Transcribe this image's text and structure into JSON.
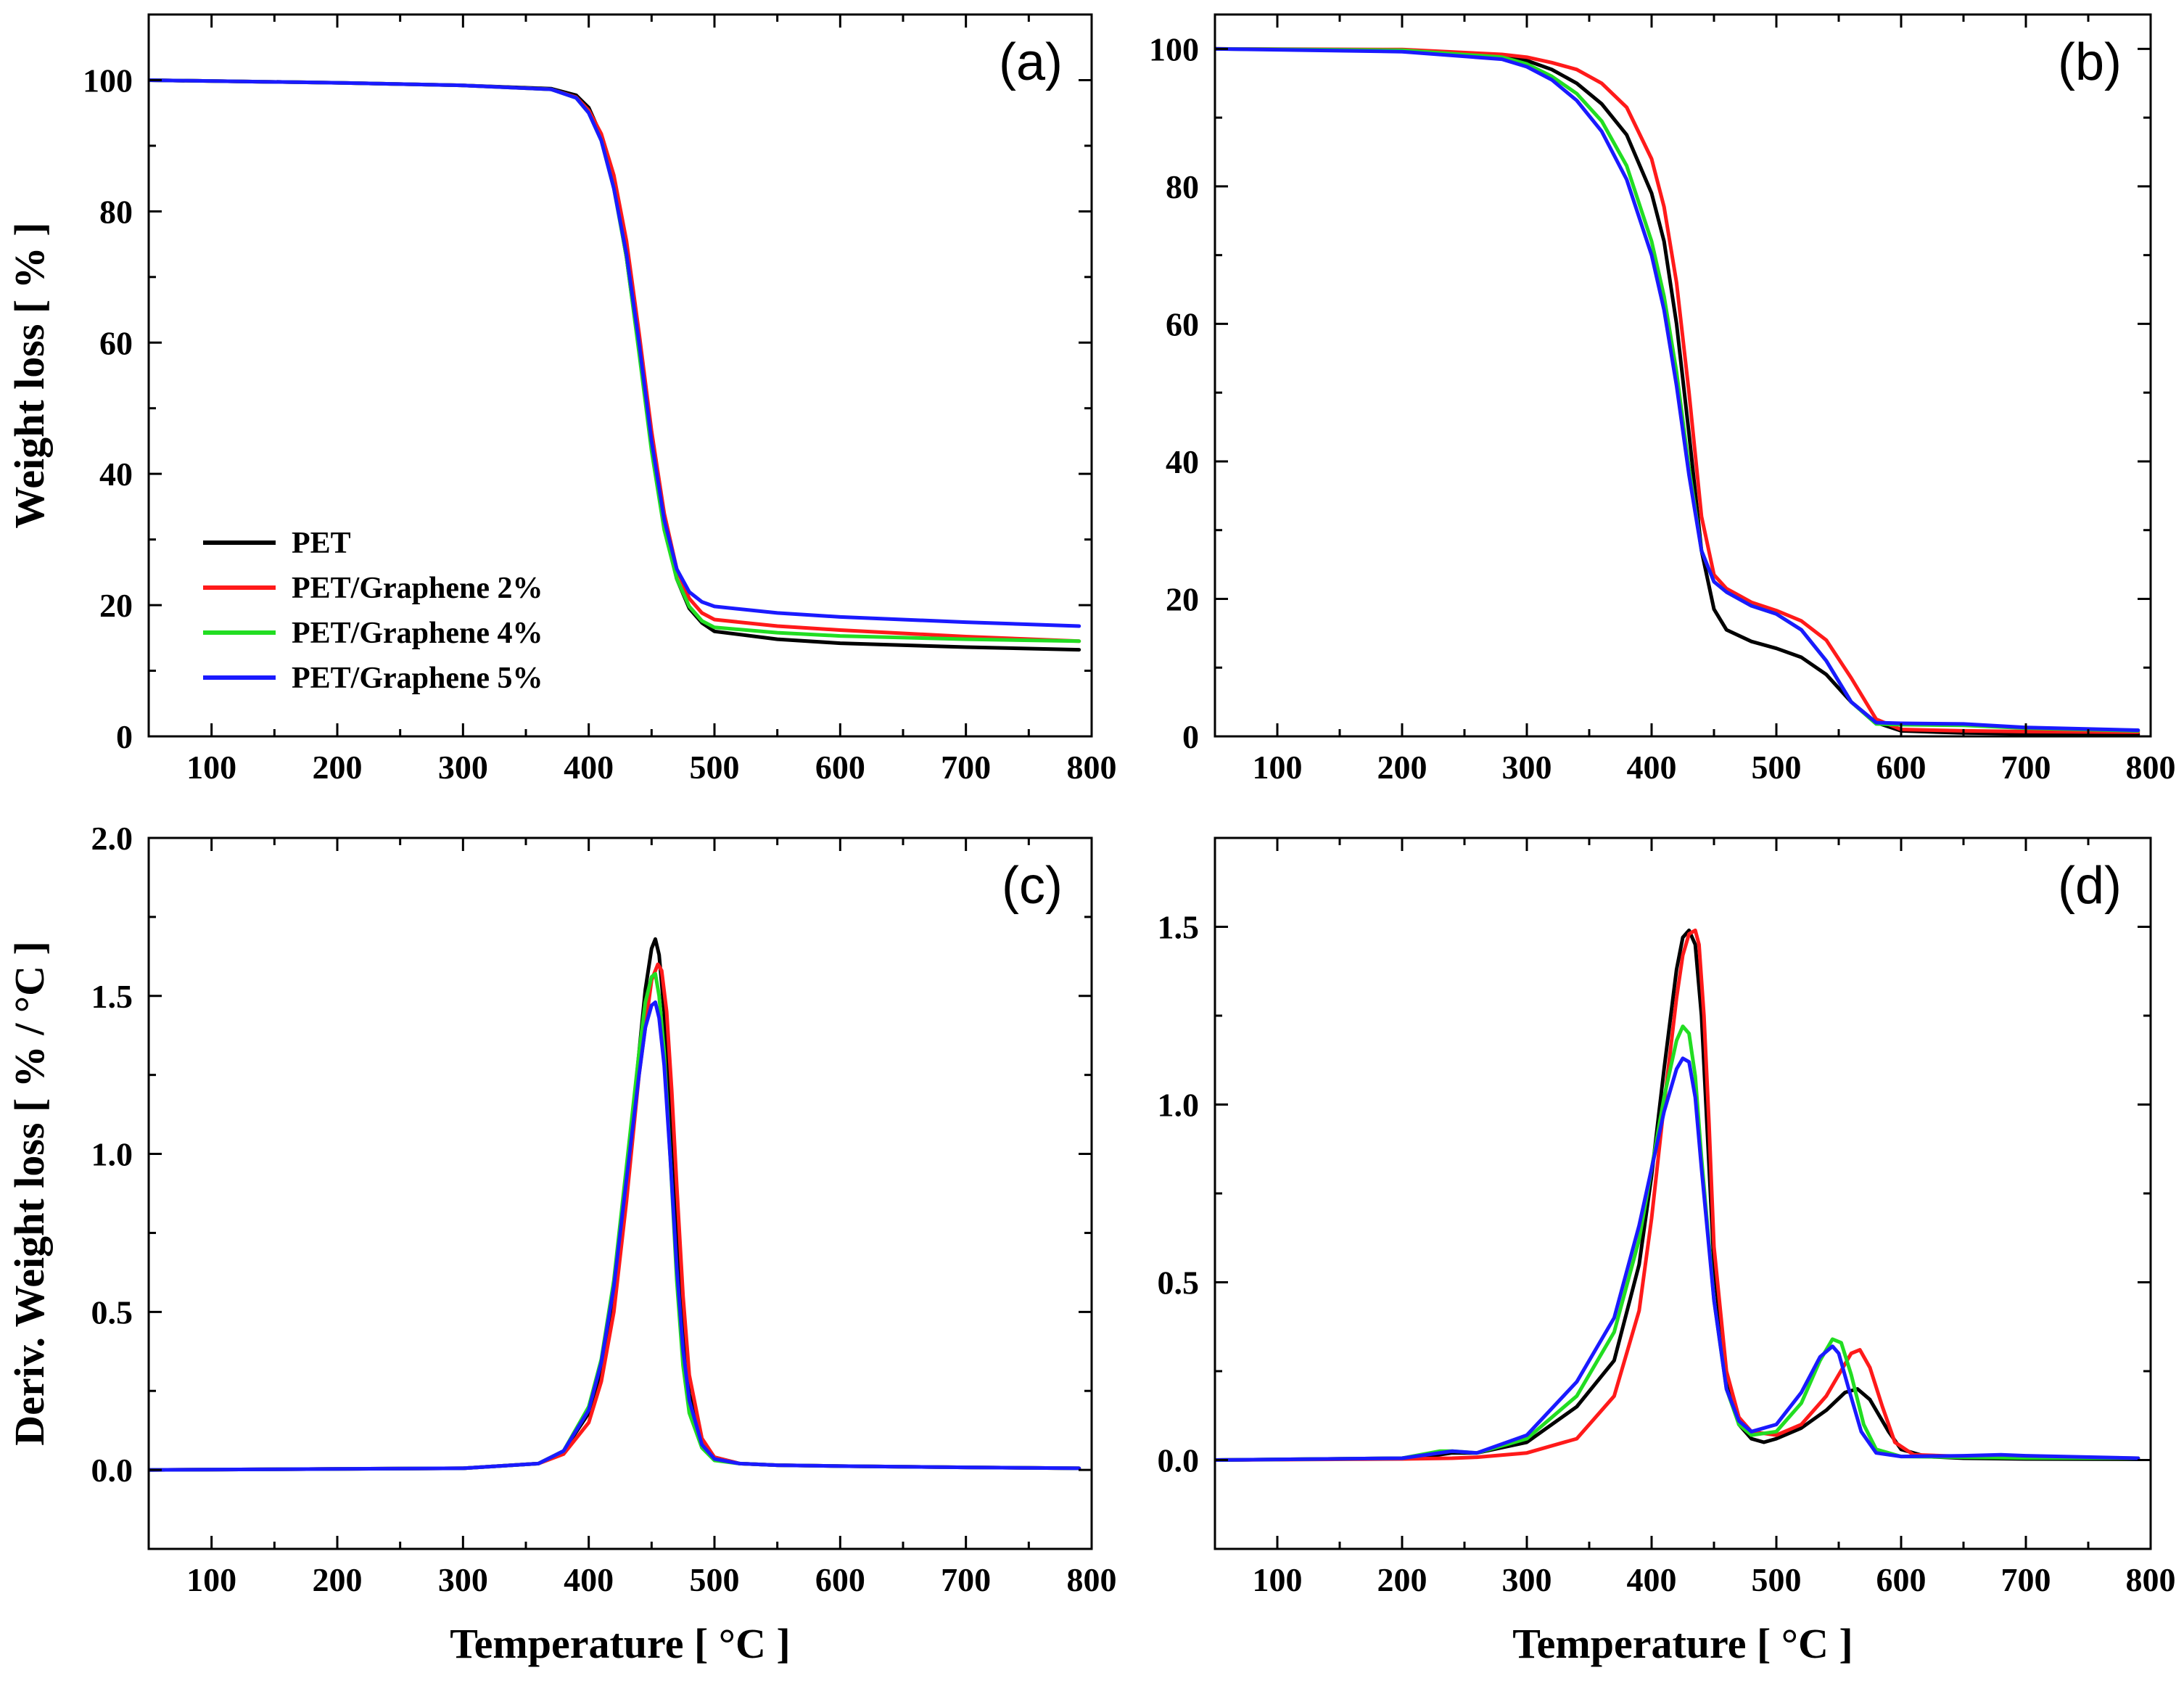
{
  "colors": {
    "PET": "#000000",
    "PET/Graphene 2%": "#ff1a1a",
    "PET/Graphene 4%": "#22dd22",
    "PET/Graphene 5%": "#1a1aff"
  },
  "legend": {
    "entries": [
      "PET",
      "PET/Graphene 2%",
      "PET/Graphene 4%",
      "PET/Graphene 5%"
    ]
  },
  "chart_data": [
    {
      "id": "a",
      "label": "(a)",
      "type": "line",
      "xlabel": "",
      "ylabel": "Weight loss [ % ]",
      "xlim": [
        50,
        800
      ],
      "ylim": [
        0,
        110
      ],
      "xticks": [
        100,
        200,
        300,
        400,
        500,
        600,
        700,
        800
      ],
      "yticks": [
        0,
        20,
        40,
        60,
        80,
        100
      ],
      "ytick_labels": [
        "0",
        "20",
        "40",
        "60",
        "80",
        "100"
      ],
      "series": [
        {
          "name": "PET",
          "x": [
            50,
            200,
            300,
            370,
            390,
            400,
            410,
            420,
            430,
            440,
            450,
            460,
            470,
            480,
            490,
            500,
            550,
            600,
            700,
            790
          ],
          "y": [
            100,
            99.6,
            99.2,
            98.7,
            97.7,
            95.8,
            91.5,
            84,
            73,
            59,
            44,
            32,
            24,
            19.5,
            17.3,
            16,
            14.8,
            14.2,
            13.6,
            13.2
          ]
        },
        {
          "name": "PET/Graphene 2%",
          "x": [
            50,
            200,
            300,
            370,
            390,
            400,
            410,
            420,
            430,
            440,
            450,
            460,
            470,
            480,
            490,
            500,
            550,
            600,
            700,
            790
          ],
          "y": [
            100,
            99.6,
            99.2,
            98.6,
            97.4,
            95.4,
            91.8,
            85.5,
            75.5,
            61.5,
            46.5,
            34,
            25.5,
            21,
            18.8,
            17.8,
            16.8,
            16.2,
            15.2,
            14.5
          ]
        },
        {
          "name": "PET/Graphene 4%",
          "x": [
            50,
            200,
            300,
            370,
            390,
            400,
            410,
            420,
            430,
            440,
            450,
            460,
            470,
            480,
            490,
            500,
            550,
            600,
            700,
            790
          ],
          "y": [
            100,
            99.6,
            99.2,
            98.6,
            97.3,
            95,
            90.8,
            83.5,
            73,
            58.5,
            43.5,
            31.5,
            24,
            19.8,
            17.6,
            16.6,
            15.8,
            15.3,
            14.8,
            14.5
          ]
        },
        {
          "name": "PET/Graphene 5%",
          "x": [
            50,
            200,
            300,
            370,
            390,
            400,
            410,
            420,
            430,
            440,
            450,
            460,
            470,
            480,
            490,
            500,
            550,
            600,
            700,
            790
          ],
          "y": [
            100,
            99.6,
            99.2,
            98.6,
            97.3,
            95,
            90.8,
            83.5,
            73.5,
            60,
            45,
            33,
            25.5,
            22,
            20.5,
            19.8,
            18.8,
            18.2,
            17.4,
            16.8
          ]
        }
      ]
    },
    {
      "id": "b",
      "label": "(b)",
      "type": "line",
      "xlabel": "",
      "ylabel": "",
      "xlim": [
        50,
        800
      ],
      "ylim": [
        0,
        105
      ],
      "xticks": [
        100,
        200,
        300,
        400,
        500,
        600,
        700,
        800
      ],
      "yticks": [
        0,
        20,
        40,
        60,
        80,
        100
      ],
      "ytick_labels": [
        "0",
        "20",
        "40",
        "60",
        "80",
        "100"
      ],
      "series": [
        {
          "name": "PET",
          "x": [
            50,
            200,
            280,
            300,
            320,
            340,
            360,
            380,
            400,
            410,
            420,
            430,
            440,
            450,
            460,
            480,
            500,
            520,
            540,
            560,
            580,
            600,
            650,
            700,
            790
          ],
          "y": [
            100,
            99.8,
            99,
            98.3,
            97,
            95,
            92,
            87.5,
            79,
            72,
            60,
            44,
            27,
            18.5,
            15.5,
            13.8,
            12.8,
            11.5,
            9,
            5,
            2,
            0.8,
            0.5,
            0.4,
            0.3
          ]
        },
        {
          "name": "PET/Graphene 2%",
          "x": [
            50,
            200,
            280,
            300,
            320,
            340,
            360,
            380,
            400,
            410,
            420,
            430,
            440,
            450,
            460,
            470,
            480,
            500,
            520,
            540,
            560,
            580,
            600,
            650,
            700,
            790
          ],
          "y": [
            100,
            99.9,
            99.2,
            98.8,
            98,
            97,
            95,
            91.5,
            84,
            77,
            66,
            50,
            32,
            23.5,
            21.5,
            20.5,
            19.5,
            18.3,
            16.8,
            14,
            8.5,
            2.5,
            1,
            0.8,
            0.7,
            0.6
          ]
        },
        {
          "name": "PET/Graphene 4%",
          "x": [
            50,
            200,
            280,
            300,
            320,
            340,
            360,
            380,
            400,
            410,
            420,
            430,
            440,
            450,
            460,
            480,
            500,
            520,
            540,
            560,
            580,
            600,
            650,
            700,
            790
          ],
          "y": [
            100,
            99.8,
            98.8,
            97.8,
            96,
            93.5,
            89.5,
            83,
            72,
            64,
            53,
            39,
            27,
            22.5,
            21,
            19,
            17.8,
            15.5,
            11,
            5,
            1.8,
            1.7,
            1.6,
            1.2,
            0.8
          ]
        },
        {
          "name": "PET/Graphene 5%",
          "x": [
            50,
            200,
            280,
            300,
            320,
            340,
            360,
            380,
            400,
            410,
            420,
            430,
            440,
            450,
            460,
            480,
            500,
            520,
            540,
            560,
            580,
            600,
            650,
            700,
            790
          ],
          "y": [
            100,
            99.6,
            98.5,
            97.4,
            95.5,
            92.5,
            88,
            81,
            70,
            62,
            51,
            38,
            27,
            22.5,
            21,
            19,
            17.8,
            15.5,
            11,
            5,
            2,
            1.9,
            1.8,
            1.3,
            0.9
          ]
        }
      ]
    },
    {
      "id": "c",
      "label": "(c)",
      "type": "line",
      "xlabel": "Temperature [ °C ]",
      "ylabel": "Deriv. Weight loss [ % / °C ]",
      "xlim": [
        50,
        800
      ],
      "ylim": [
        -0.25,
        2.0
      ],
      "xticks": [
        100,
        200,
        300,
        400,
        500,
        600,
        700,
        800
      ],
      "yticks": [
        0,
        0.5,
        1.0,
        1.5,
        2.0
      ],
      "ytick_labels": [
        "0.0",
        "0.5",
        "1.0",
        "1.5",
        "2.0"
      ],
      "series": [
        {
          "name": "PET",
          "x": [
            50,
            300,
            360,
            380,
            400,
            410,
            420,
            430,
            440,
            445,
            450,
            453,
            456,
            460,
            465,
            470,
            475,
            480,
            490,
            500,
            520,
            550,
            600,
            650,
            700,
            790
          ],
          "y": [
            0,
            0.005,
            0.02,
            0.06,
            0.18,
            0.32,
            0.56,
            0.92,
            1.32,
            1.52,
            1.65,
            1.68,
            1.63,
            1.45,
            1.1,
            0.72,
            0.42,
            0.24,
            0.09,
            0.04,
            0.02,
            0.015,
            0.012,
            0.01,
            0.008,
            0.005
          ]
        },
        {
          "name": "PET/Graphene 2%",
          "x": [
            50,
            300,
            360,
            380,
            400,
            410,
            420,
            430,
            440,
            450,
            455,
            458,
            462,
            466,
            470,
            475,
            480,
            490,
            500,
            520,
            550,
            600,
            650,
            700,
            790
          ],
          "y": [
            0,
            0.005,
            0.02,
            0.05,
            0.15,
            0.28,
            0.5,
            0.85,
            1.25,
            1.55,
            1.6,
            1.58,
            1.45,
            1.2,
            0.9,
            0.55,
            0.3,
            0.1,
            0.04,
            0.02,
            0.015,
            0.012,
            0.01,
            0.008,
            0.005
          ]
        },
        {
          "name": "PET/Graphene 4%",
          "x": [
            50,
            300,
            360,
            380,
            400,
            410,
            420,
            430,
            440,
            445,
            450,
            453,
            456,
            460,
            465,
            470,
            475,
            480,
            490,
            500,
            520,
            550,
            600,
            650,
            700,
            790
          ],
          "y": [
            0,
            0.005,
            0.02,
            0.06,
            0.2,
            0.35,
            0.6,
            0.96,
            1.32,
            1.48,
            1.56,
            1.57,
            1.5,
            1.32,
            0.98,
            0.6,
            0.33,
            0.18,
            0.07,
            0.03,
            0.02,
            0.015,
            0.012,
            0.01,
            0.008,
            0.005
          ]
        },
        {
          "name": "PET/Graphene 5%",
          "x": [
            50,
            300,
            360,
            380,
            400,
            410,
            420,
            430,
            440,
            445,
            450,
            453,
            456,
            460,
            465,
            470,
            475,
            480,
            490,
            500,
            520,
            550,
            600,
            650,
            700,
            790
          ],
          "y": [
            0,
            0.005,
            0.02,
            0.06,
            0.19,
            0.34,
            0.58,
            0.92,
            1.25,
            1.4,
            1.47,
            1.48,
            1.43,
            1.28,
            0.98,
            0.64,
            0.38,
            0.22,
            0.08,
            0.035,
            0.02,
            0.015,
            0.012,
            0.01,
            0.008,
            0.005
          ]
        }
      ]
    },
    {
      "id": "d",
      "label": "(d)",
      "type": "line",
      "xlabel": "Temperature [ °C ]",
      "ylabel": "",
      "xlim": [
        50,
        800
      ],
      "ylim": [
        -0.25,
        1.75
      ],
      "xticks": [
        100,
        200,
        300,
        400,
        500,
        600,
        700,
        800
      ],
      "yticks": [
        0,
        0.5,
        1.0,
        1.5
      ],
      "ytick_labels": [
        "0.0",
        "0.5",
        "1.0",
        "1.5"
      ],
      "series": [
        {
          "name": "PET",
          "x": [
            50,
            200,
            230,
            240,
            260,
            300,
            340,
            370,
            390,
            400,
            410,
            420,
            425,
            430,
            435,
            440,
            445,
            450,
            460,
            470,
            480,
            490,
            500,
            520,
            540,
            555,
            565,
            575,
            590,
            600,
            620,
            650,
            700,
            790
          ],
          "y": [
            0,
            0.005,
            0.015,
            0.02,
            0.02,
            0.05,
            0.15,
            0.28,
            0.55,
            0.8,
            1.1,
            1.38,
            1.47,
            1.49,
            1.45,
            1.25,
            0.9,
            0.55,
            0.22,
            0.1,
            0.06,
            0.05,
            0.06,
            0.09,
            0.14,
            0.19,
            0.2,
            0.17,
            0.08,
            0.03,
            0.01,
            0.005,
            0.003,
            0.002
          ]
        },
        {
          "name": "PET/Graphene 2%",
          "x": [
            50,
            200,
            240,
            260,
            300,
            340,
            370,
            390,
            400,
            410,
            420,
            425,
            430,
            435,
            438,
            442,
            446,
            450,
            460,
            470,
            480,
            500,
            520,
            540,
            555,
            560,
            567,
            575,
            585,
            595,
            610,
            650,
            700,
            790
          ],
          "y": [
            0,
            0.003,
            0.005,
            0.008,
            0.02,
            0.06,
            0.18,
            0.42,
            0.68,
            1.0,
            1.3,
            1.42,
            1.48,
            1.49,
            1.45,
            1.25,
            0.95,
            0.6,
            0.25,
            0.12,
            0.08,
            0.07,
            0.1,
            0.18,
            0.27,
            0.3,
            0.31,
            0.26,
            0.15,
            0.05,
            0.015,
            0.01,
            0.008,
            0.005
          ]
        },
        {
          "name": "PET/Graphene 4%",
          "x": [
            50,
            200,
            230,
            240,
            260,
            300,
            340,
            370,
            390,
            400,
            410,
            420,
            425,
            430,
            435,
            440,
            450,
            460,
            470,
            480,
            500,
            520,
            535,
            545,
            552,
            560,
            570,
            580,
            600,
            650,
            700,
            790
          ],
          "y": [
            0,
            0.005,
            0.025,
            0.025,
            0.02,
            0.06,
            0.18,
            0.36,
            0.62,
            0.82,
            1.02,
            1.18,
            1.22,
            1.2,
            1.08,
            0.85,
            0.45,
            0.2,
            0.1,
            0.07,
            0.08,
            0.16,
            0.28,
            0.34,
            0.33,
            0.24,
            0.1,
            0.03,
            0.01,
            0.008,
            0.006,
            0.005
          ]
        },
        {
          "name": "PET/Graphene 5%",
          "x": [
            50,
            200,
            230,
            240,
            260,
            300,
            340,
            370,
            390,
            400,
            410,
            420,
            425,
            430,
            435,
            440,
            450,
            460,
            470,
            480,
            500,
            520,
            535,
            545,
            550,
            558,
            568,
            580,
            600,
            650,
            680,
            700,
            790
          ],
          "y": [
            0,
            0.005,
            0.02,
            0.025,
            0.02,
            0.07,
            0.22,
            0.4,
            0.66,
            0.82,
            0.98,
            1.1,
            1.13,
            1.12,
            1.02,
            0.82,
            0.45,
            0.2,
            0.11,
            0.08,
            0.1,
            0.19,
            0.29,
            0.32,
            0.3,
            0.2,
            0.08,
            0.02,
            0.01,
            0.012,
            0.015,
            0.012,
            0.005
          ]
        }
      ]
    }
  ]
}
